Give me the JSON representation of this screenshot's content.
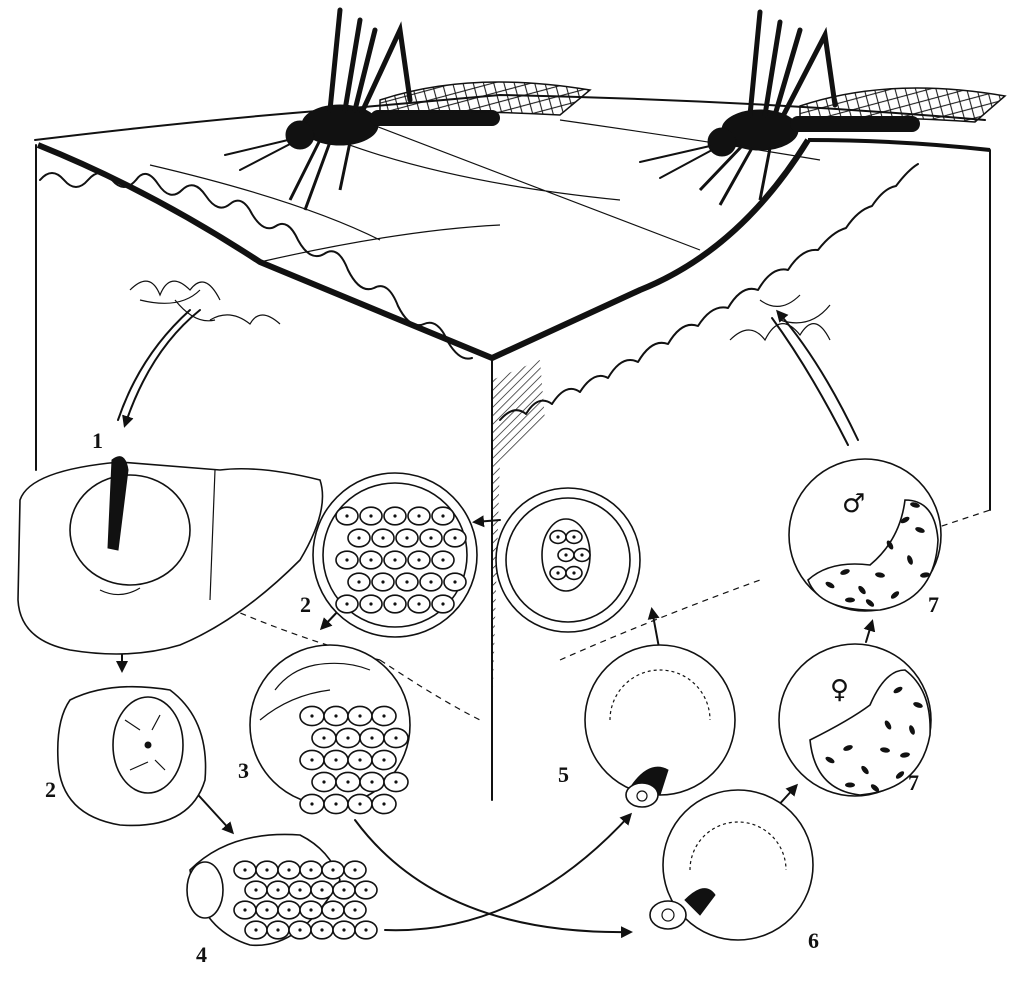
{
  "labels": {
    "stage_1": "1",
    "stage_2_liver": "2",
    "stage_2_blood": "2",
    "stage_3": "3",
    "stage_4": "4",
    "stage_5": "5",
    "stage_6": "6",
    "stage_7_male": "7",
    "stage_7_female": "7"
  },
  "symbols": {
    "male": "♂",
    "female": "♀"
  },
  "colors": {
    "ink": "#111111",
    "paper": "#ffffff"
  },
  "icons": [
    "mosquito-icon",
    "liver-icon",
    "cell-icon",
    "arrow-icon"
  ]
}
